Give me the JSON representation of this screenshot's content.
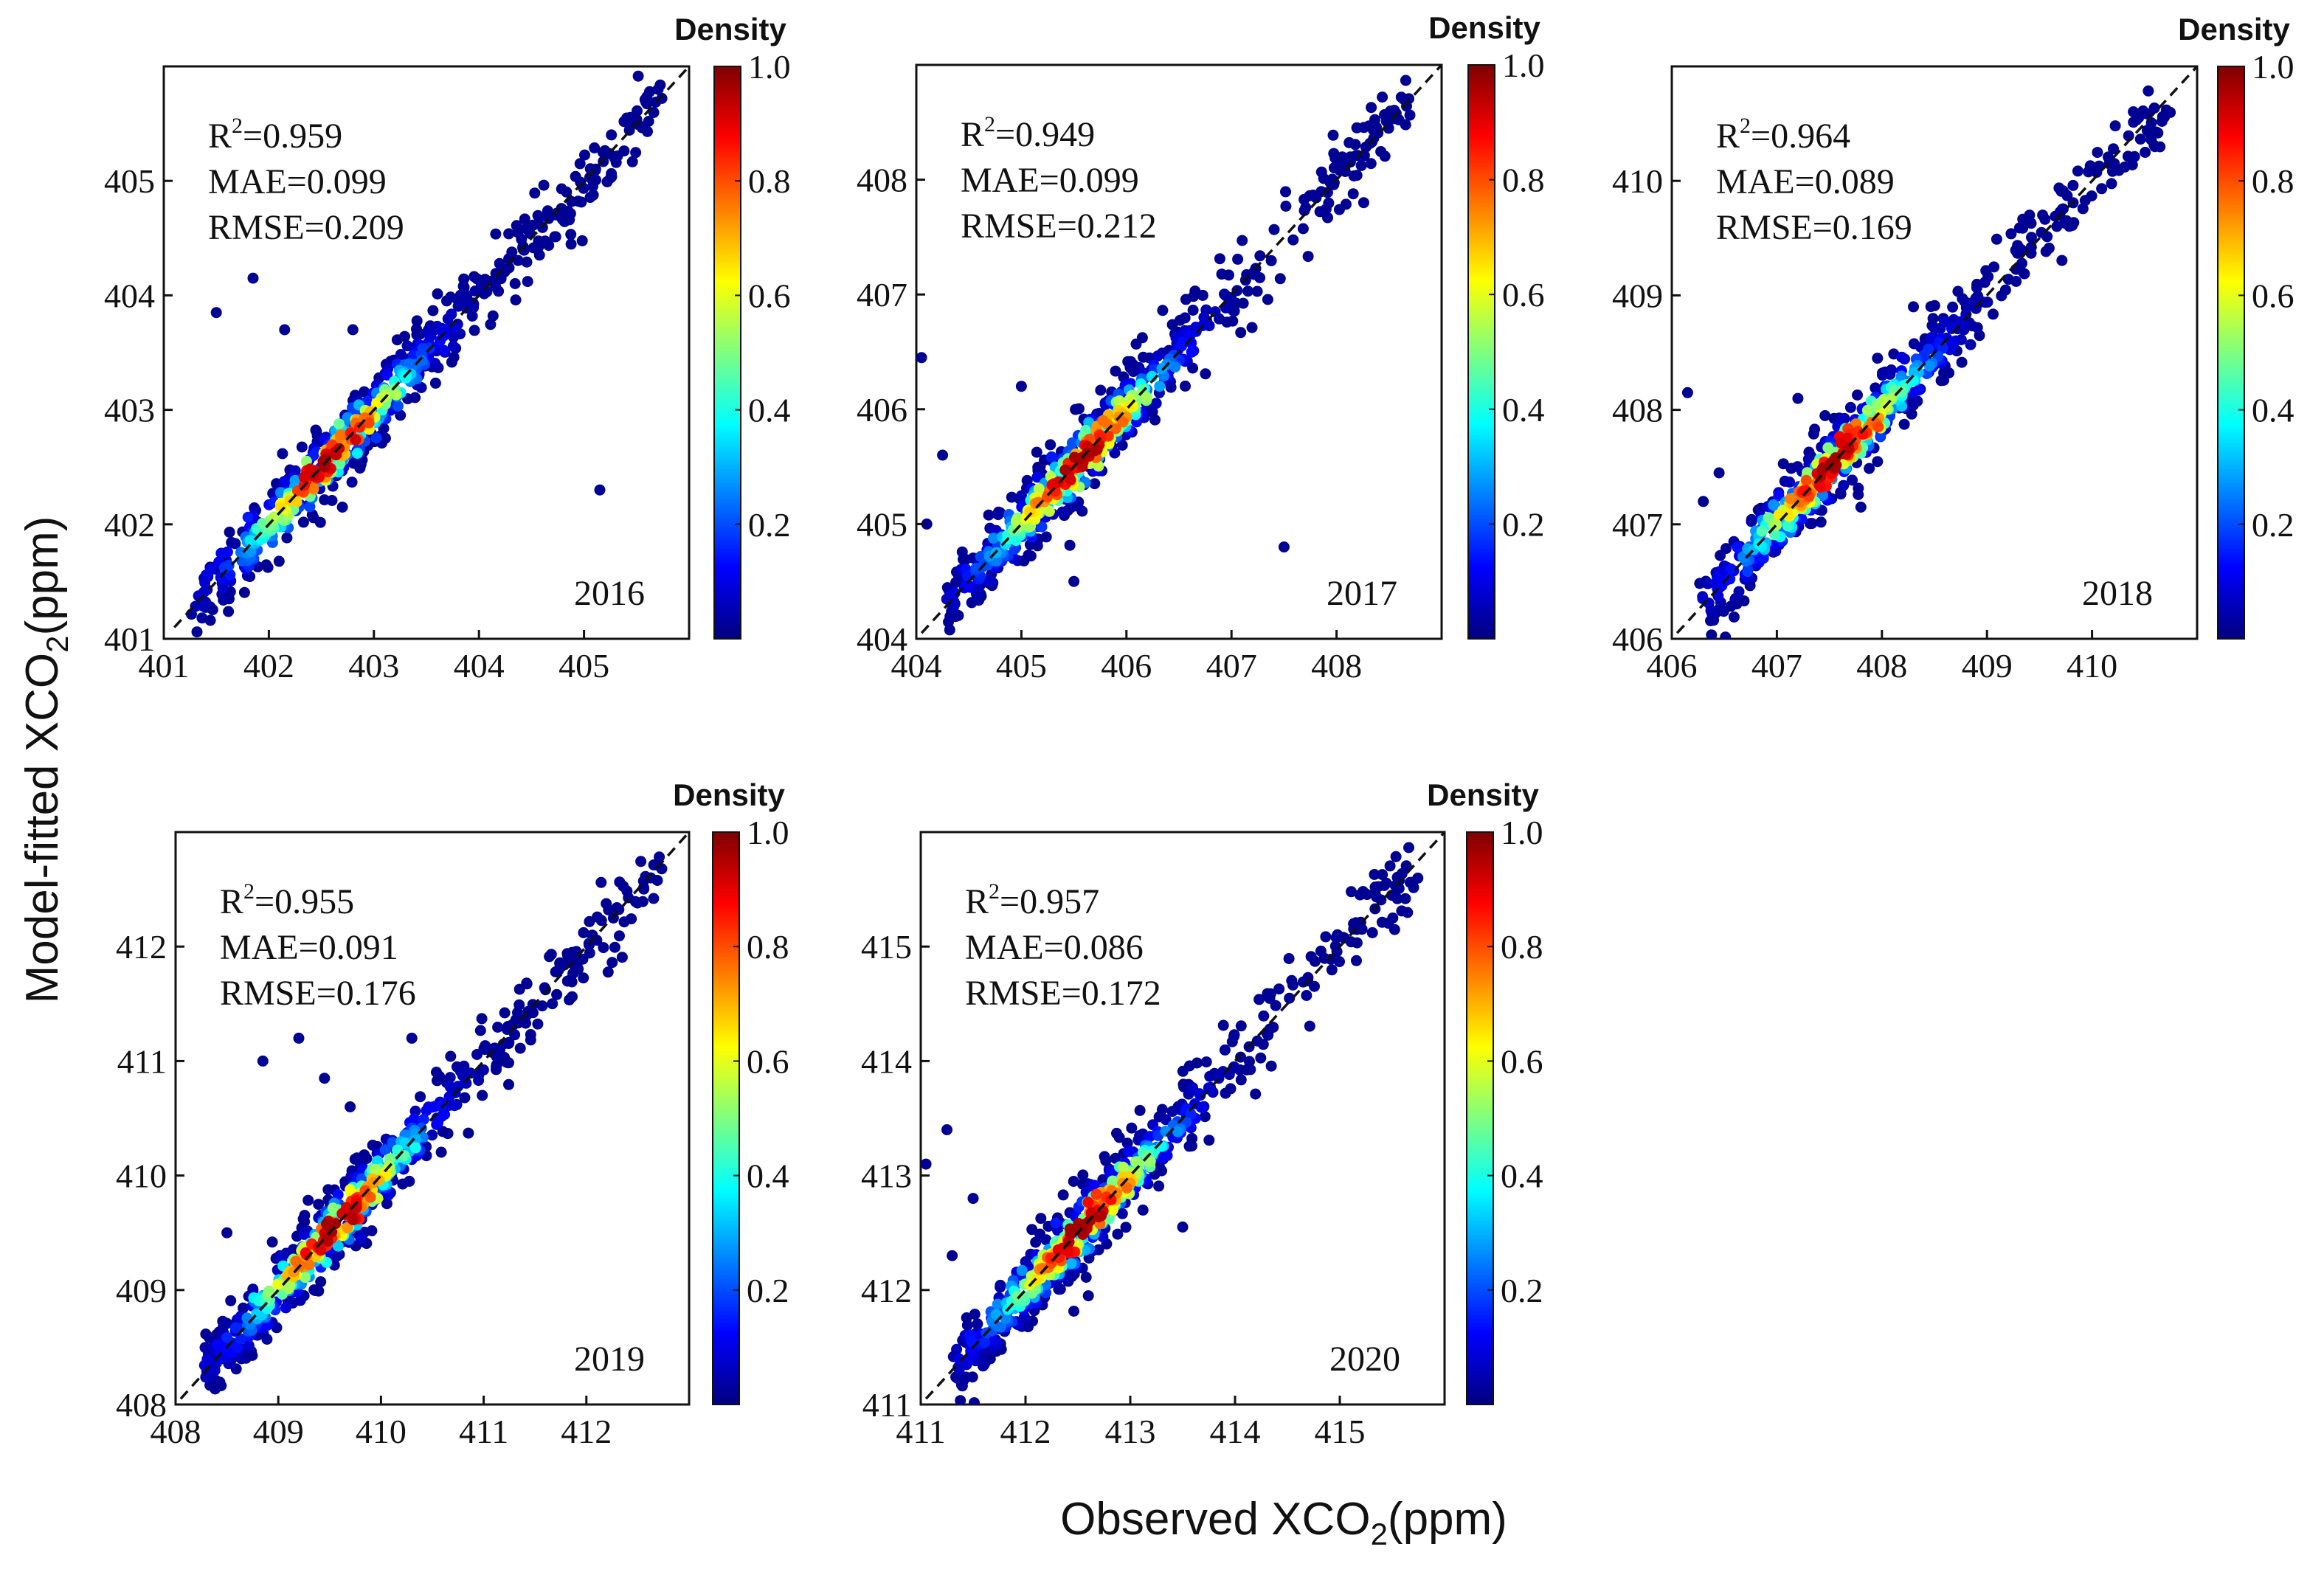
{
  "figure": {
    "ylabel_main": "Model-fitted XCO",
    "ylabel_sub": "2",
    "ylabel_tail": "(ppm)",
    "xlabel_main": "Observed XCO",
    "xlabel_sub": "2",
    "xlabel_tail": "(ppm)"
  },
  "colormap": {
    "name": "jet",
    "stops": [
      "#00007f",
      "#0000ff",
      "#007fff",
      "#00ffff",
      "#7fff7f",
      "#ffff00",
      "#ff7f00",
      "#ff0000",
      "#7f0000"
    ]
  },
  "chart_data": [
    {
      "type": "scatter",
      "year": "2016",
      "r2_label": "R",
      "r2_sup": "2",
      "r2_value": "=0.959",
      "mae": "MAE=0.099",
      "rmse": "RMSE=0.209",
      "xlim": [
        401,
        406
      ],
      "ylim": [
        401,
        406
      ],
      "xticks": [
        401,
        402,
        403,
        404,
        405
      ],
      "yticks": [
        401,
        402,
        403,
        404,
        405
      ],
      "diag_start": 401.1,
      "colorbar": {
        "title": "Density",
        "ticks": [
          "0.2",
          "0.4",
          "0.6",
          "0.8",
          "1.0"
        ]
      },
      "outliers": [
        [
          401.5,
          403.85
        ],
        [
          401.85,
          404.15
        ],
        [
          402.15,
          403.7
        ],
        [
          402.8,
          403.7
        ],
        [
          405.15,
          402.3
        ],
        [
          402.7,
          402.15
        ]
      ]
    },
    {
      "type": "scatter",
      "year": "2017",
      "r2_label": "R",
      "r2_sup": "2",
      "r2_value": "=0.949",
      "mae": "MAE=0.099",
      "rmse": "RMSE=0.212",
      "xlim": [
        404,
        409
      ],
      "ylim": [
        404,
        409
      ],
      "xticks": [
        404,
        405,
        406,
        407,
        408
      ],
      "yticks": [
        404,
        405,
        406,
        407,
        408
      ],
      "diag_start": 404.05,
      "colorbar": {
        "title": "Density",
        "ticks": [
          "0.2",
          "0.4",
          "0.6",
          "0.8",
          "1.0"
        ]
      },
      "outliers": [
        [
          404.05,
          406.45
        ],
        [
          404.25,
          405.6
        ],
        [
          404.1,
          405.0
        ],
        [
          405.0,
          406.2
        ],
        [
          407.5,
          404.8
        ],
        [
          405.5,
          404.5
        ]
      ]
    },
    {
      "type": "scatter",
      "year": "2018",
      "r2_label": "R",
      "r2_sup": "2",
      "r2_value": "=0.964",
      "mae": "MAE=0.089",
      "rmse": "RMSE=0.169",
      "xlim": [
        406,
        411
      ],
      "ylim": [
        406,
        411
      ],
      "xticks": [
        406,
        407,
        408,
        409,
        410
      ],
      "yticks": [
        406,
        407,
        408,
        409,
        410
      ],
      "diag_start": 406.05,
      "colorbar": {
        "title": "Density",
        "ticks": [
          "0.2",
          "0.4",
          "0.6",
          "0.8",
          "1.0"
        ]
      },
      "outliers": [
        [
          406.15,
          408.15
        ],
        [
          406.45,
          407.45
        ],
        [
          407.2,
          408.1
        ],
        [
          406.3,
          407.2
        ],
        [
          407.8,
          407.15
        ],
        [
          408.3,
          408.9
        ]
      ]
    },
    {
      "type": "scatter",
      "year": "2019",
      "r2_label": "R",
      "r2_sup": "2",
      "r2_value": "=0.955",
      "mae": "MAE=0.091",
      "rmse": "RMSE=0.176",
      "xlim": [
        408,
        413
      ],
      "ylim": [
        408,
        413
      ],
      "xticks": [
        408,
        409,
        410,
        411,
        412
      ],
      "yticks": [
        408,
        409,
        410,
        411,
        412
      ],
      "diag_start": 408.05,
      "colorbar": {
        "title": "Density",
        "ticks": [
          "0.2",
          "0.4",
          "0.6",
          "0.8",
          "1.0"
        ]
      },
      "outliers": [
        [
          408.85,
          411.0
        ],
        [
          409.2,
          411.2
        ],
        [
          409.45,
          410.85
        ],
        [
          408.5,
          409.5
        ],
        [
          409.7,
          410.6
        ],
        [
          410.3,
          411.2
        ]
      ]
    },
    {
      "type": "scatter",
      "year": "2020",
      "r2_label": "R",
      "r2_sup": "2",
      "r2_value": "=0.957",
      "mae": "MAE=0.086",
      "rmse": "RMSE=0.172",
      "xlim": [
        411,
        416
      ],
      "ylim": [
        411,
        416
      ],
      "xticks": [
        411,
        412,
        413,
        414,
        415
      ],
      "yticks": [
        411,
        412,
        413,
        414,
        415
      ],
      "diag_start": 411.05,
      "colorbar": {
        "title": "Density",
        "ticks": [
          "0.2",
          "0.4",
          "0.6",
          "0.8",
          "1.0"
        ]
      },
      "outliers": [
        [
          411.05,
          413.1
        ],
        [
          411.25,
          413.4
        ],
        [
          411.5,
          412.8
        ],
        [
          411.3,
          412.3
        ],
        [
          412.6,
          411.95
        ],
        [
          413.5,
          412.55
        ]
      ]
    }
  ]
}
